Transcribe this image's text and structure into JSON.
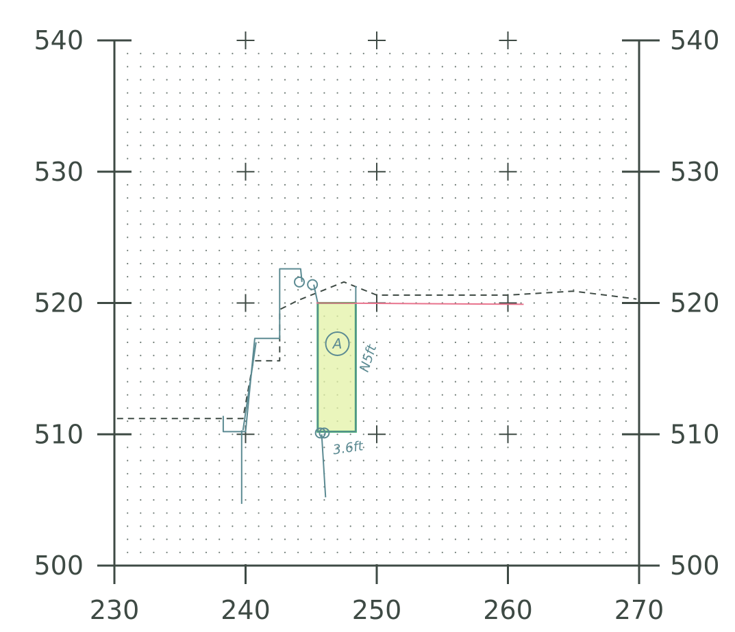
{
  "chart_data": {
    "type": "scatter",
    "xlim": [
      230,
      270
    ],
    "ylim": [
      500,
      540
    ],
    "x_ticks": [
      "230",
      "240",
      "250",
      "260",
      "270"
    ],
    "y_ticks_left": [
      "500",
      "510",
      "520",
      "530",
      "540"
    ],
    "y_ticks_right": [
      "500",
      "510",
      "520",
      "530",
      "540"
    ],
    "dot_grid_spacing": 1,
    "grid": "dotted",
    "cross_marks": [
      [
        240,
        540
      ],
      [
        250,
        540
      ],
      [
        260,
        540
      ],
      [
        240,
        530
      ],
      [
        250,
        530
      ],
      [
        260,
        530
      ],
      [
        240,
        520
      ],
      [
        250,
        520
      ],
      [
        260,
        520
      ],
      [
        240,
        510
      ],
      [
        250,
        510
      ],
      [
        260,
        510
      ]
    ],
    "series": [
      {
        "style": "dashed",
        "color": "#3e4a44",
        "points": [
          [
            230.2,
            511.2
          ],
          [
            239.8,
            511.2
          ],
          [
            240.6,
            515.6
          ],
          [
            242.6,
            515.6
          ],
          [
            242.6,
            519.5
          ],
          [
            244.0,
            520.2
          ],
          [
            247.5,
            521.6
          ],
          [
            250.0,
            520.6
          ],
          [
            260.0,
            520.6
          ],
          [
            265.0,
            520.9
          ],
          [
            269.8,
            520.3
          ]
        ]
      },
      {
        "style": "solid",
        "color": "#5b8a92",
        "points": [
          [
            238.3,
            511.4
          ],
          [
            238.3,
            510.2
          ],
          [
            240.0,
            510.2
          ],
          [
            240.7,
            517.3
          ],
          [
            242.6,
            517.3
          ],
          [
            242.6,
            522.6
          ],
          [
            244.2,
            522.6
          ],
          [
            244.3,
            521.6
          ]
        ]
      },
      {
        "style": "solid",
        "color": "#5b8a92",
        "points": [
          [
            239.8,
            510.3
          ],
          [
            240.8,
            517.0
          ]
        ]
      },
      {
        "style": "solid",
        "color": "#5b8a92",
        "points": [
          [
            239.7,
            504.7
          ],
          [
            239.7,
            510.3
          ]
        ]
      },
      {
        "style": "solid",
        "color": "#5b8a92",
        "points": [
          [
            245.8,
            510.0
          ],
          [
            246.1,
            505.2
          ]
        ]
      },
      {
        "style": "solid",
        "color": "#5b8a92",
        "points": [
          [
            245.2,
            521.4
          ],
          [
            245.5,
            520.0
          ],
          [
            245.5,
            510.2
          ],
          [
            248.4,
            510.2
          ],
          [
            248.4,
            521.3
          ]
        ]
      },
      {
        "style": "solid",
        "color": "#e8728c",
        "points": [
          [
            245.4,
            520.0
          ],
          [
            261.2,
            519.9
          ]
        ]
      }
    ],
    "highlight_rect": {
      "x": [
        245.5,
        248.4
      ],
      "y": [
        510.2,
        520.0
      ],
      "fill": "#e3f2a6",
      "stroke": "#2fbf5a"
    },
    "circle_markers": [
      [
        244.1,
        521.6
      ],
      [
        245.1,
        521.4
      ],
      [
        245.7,
        510.1
      ],
      [
        246.0,
        510.1
      ]
    ],
    "annotations": [
      {
        "text": "A",
        "x": 247.0,
        "y": 516.9,
        "circled": true
      },
      {
        "text": "N5ft",
        "x": 249.3,
        "y": 515.8,
        "rotate": -72
      },
      {
        "text": "3.6ft",
        "x": 247.8,
        "y": 509.0,
        "rotate": -8
      }
    ]
  }
}
